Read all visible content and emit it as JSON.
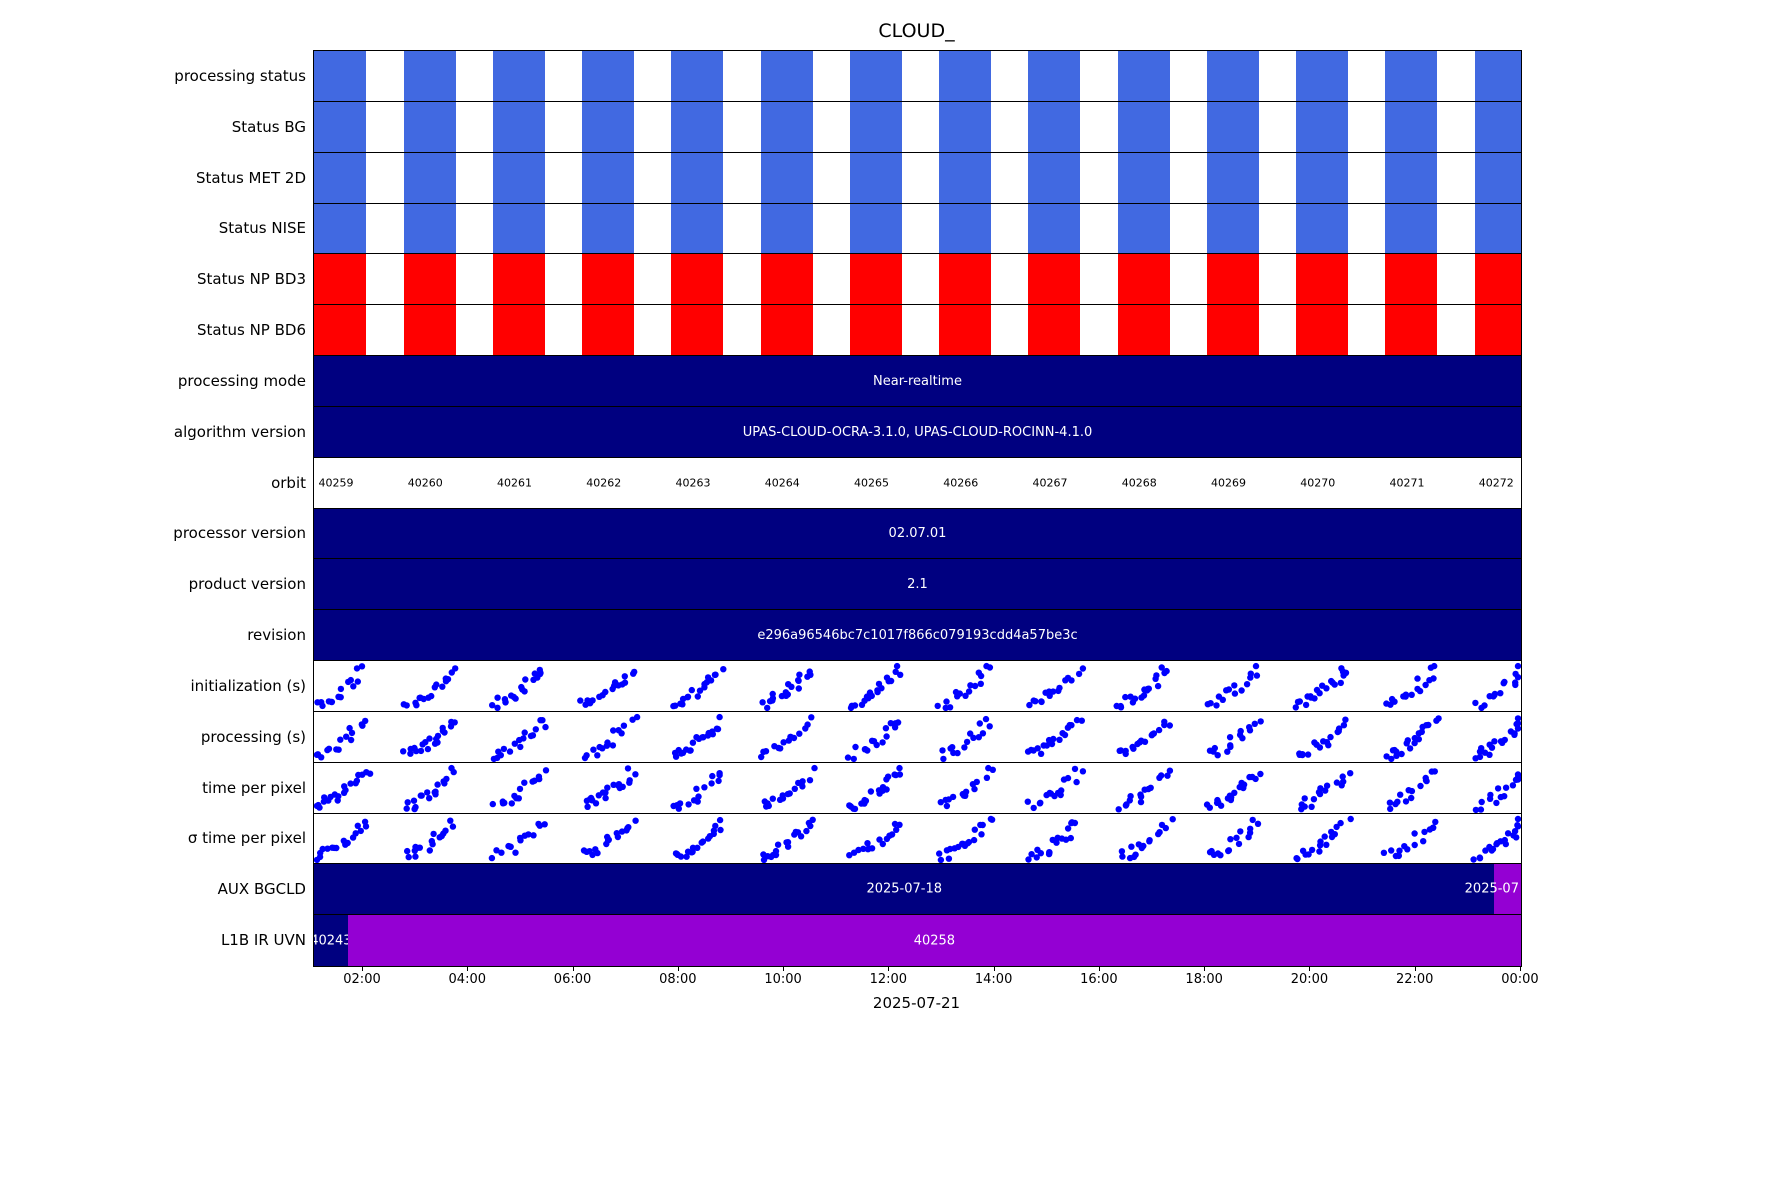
{
  "title": "CLOUD_",
  "x_axis": {
    "tick_labels": [
      "02:00",
      "04:00",
      "06:00",
      "08:00",
      "10:00",
      "12:00",
      "14:00",
      "16:00",
      "18:00",
      "20:00",
      "22:00",
      "00:00"
    ],
    "date_label": "2025-07-21"
  },
  "colors": {
    "status_blue": "#4169e1",
    "status_red": "#ff0000",
    "bar_navy": "#000080",
    "bar_purple": "#9400d3",
    "dot_blue": "#0000ff",
    "text_white": "#ffffff",
    "text_black": "#000000"
  },
  "chart_data": {
    "type": "timeline",
    "title": "CLOUD_",
    "xlabel": "2025-07-21",
    "x_range": [
      "01:05",
      "24:00"
    ],
    "legend": "none",
    "grid": "row separators only",
    "orbits": [
      "40259",
      "40260",
      "40261",
      "40262",
      "40263",
      "40264",
      "40265",
      "40266",
      "40267",
      "40268",
      "40269",
      "40270",
      "40271",
      "40272"
    ],
    "rows": [
      {
        "label": "processing status",
        "type": "blocks",
        "color_key": "status_blue",
        "note": "one filled granule block per orbit"
      },
      {
        "label": "Status BG",
        "type": "blocks",
        "color_key": "status_blue"
      },
      {
        "label": "Status MET 2D",
        "type": "blocks",
        "color_key": "status_blue"
      },
      {
        "label": "Status NISE",
        "type": "blocks",
        "color_key": "status_blue"
      },
      {
        "label": "Status NP BD3",
        "type": "blocks",
        "color_key": "status_red"
      },
      {
        "label": "Status NP BD6",
        "type": "blocks",
        "color_key": "status_red"
      },
      {
        "label": "processing mode",
        "type": "text_bar",
        "color_key": "bar_navy",
        "text": "Near-realtime"
      },
      {
        "label": "algorithm version",
        "type": "text_bar",
        "color_key": "bar_navy",
        "text": "UPAS-CLOUD-OCRA-3.1.0, UPAS-CLOUD-ROCINN-4.1.0"
      },
      {
        "label": "orbit",
        "type": "orbit_labels"
      },
      {
        "label": "processor version",
        "type": "text_bar",
        "color_key": "bar_navy",
        "text": "02.07.01"
      },
      {
        "label": "product version",
        "type": "text_bar",
        "color_key": "bar_navy",
        "text": "2.1"
      },
      {
        "label": "revision",
        "type": "text_bar",
        "color_key": "bar_navy",
        "text": "e296a96546bc7c1017f866c079193cdd4a57be3c"
      },
      {
        "label": "initialization (s)",
        "type": "scatter",
        "seed": 101,
        "pattern": "per-orbit ascending clusters of blue dots"
      },
      {
        "label": "processing (s)",
        "type": "scatter",
        "seed": 202,
        "pattern": "per-orbit ascending clusters of blue dots"
      },
      {
        "label": "time per pixel",
        "type": "scatter",
        "seed": 303,
        "pattern": "per-orbit ascending clusters of blue dots"
      },
      {
        "label": "σ time per pixel",
        "type": "scatter",
        "seed": 404,
        "pattern": "per-orbit ascending clusters of blue dots"
      },
      {
        "label": "AUX BGCLD",
        "type": "segments",
        "segments": [
          {
            "from": 0.0,
            "to": 0.978,
            "color_key": "bar_navy",
            "text": "2025-07-18",
            "align": "center"
          },
          {
            "from": 0.978,
            "to": 1.0,
            "color_key": "bar_purple",
            "text": "2025-07",
            "align": "right"
          }
        ]
      },
      {
        "label": "L1B IR UVN",
        "type": "segments",
        "segments": [
          {
            "from": 0.0,
            "to": 0.028,
            "color_key": "bar_navy",
            "text": "40243",
            "align": "center"
          },
          {
            "from": 0.028,
            "to": 1.0,
            "color_key": "bar_purple",
            "text": "40258",
            "align": "center"
          }
        ]
      }
    ]
  }
}
